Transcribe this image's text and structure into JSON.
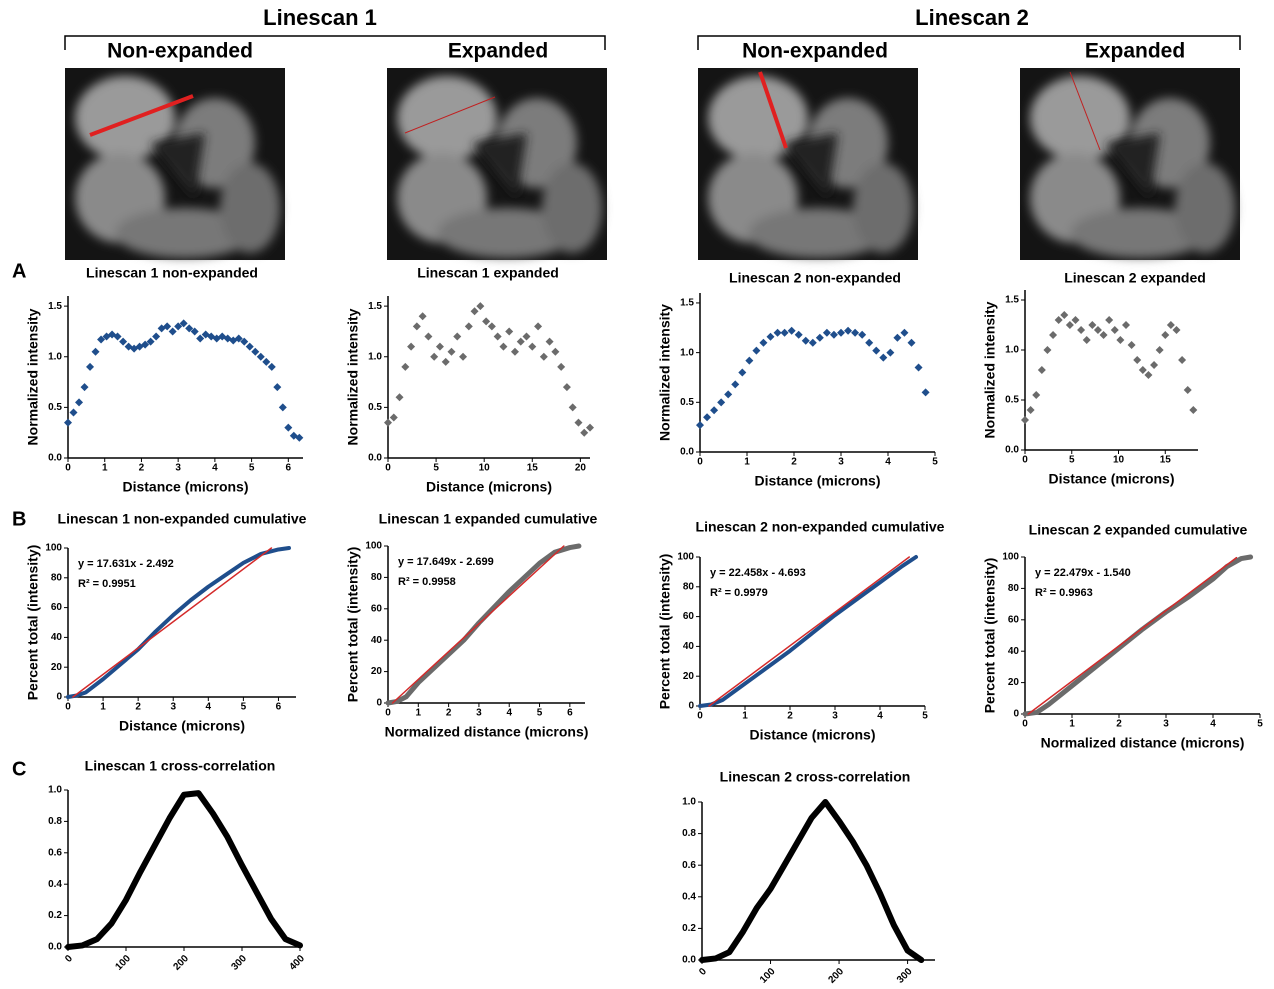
{
  "header": {
    "groups": [
      {
        "title": "Linescan 1",
        "columns": [
          "Non-expanded",
          "Expanded"
        ]
      },
      {
        "title": "Linescan 2",
        "columns": [
          "Non-expanded",
          "Expanded"
        ]
      }
    ]
  },
  "panel_labels": [
    "A",
    "B",
    "C"
  ],
  "chart_data": [
    {
      "type": "scatter",
      "title": "Linescan 1 non-expanded",
      "x_label": "Distance (microns)",
      "y_label": "Normalized intensity",
      "xlim": [
        0,
        6.4
      ],
      "ylim": [
        0,
        1.6
      ],
      "xticks": [
        0,
        1,
        2,
        3,
        4,
        5,
        6
      ],
      "yticks": [
        {
          "value": 0,
          "label": "0.0"
        },
        0.5,
        {
          "value": 1,
          "label": "1.0"
        },
        1.5
      ],
      "series": [
        {
          "color": "#1f4e8c",
          "x": [
            0,
            0.15,
            0.3,
            0.45,
            0.6,
            0.75,
            0.9,
            1.05,
            1.2,
            1.35,
            1.5,
            1.65,
            1.8,
            1.95,
            2.1,
            2.25,
            2.4,
            2.55,
            2.7,
            2.85,
            3,
            3.15,
            3.3,
            3.45,
            3.6,
            3.75,
            3.9,
            4.05,
            4.2,
            4.35,
            4.5,
            4.65,
            4.8,
            4.95,
            5.1,
            5.25,
            5.4,
            5.55,
            5.7,
            5.85,
            6,
            6.15,
            6.3
          ],
          "values": [
            0.35,
            0.45,
            0.55,
            0.7,
            0.9,
            1.05,
            1.17,
            1.2,
            1.22,
            1.2,
            1.15,
            1.1,
            1.08,
            1.1,
            1.12,
            1.15,
            1.2,
            1.28,
            1.3,
            1.25,
            1.3,
            1.33,
            1.28,
            1.25,
            1.18,
            1.22,
            1.2,
            1.18,
            1.2,
            1.18,
            1.16,
            1.18,
            1.15,
            1.1,
            1.05,
            1.0,
            0.95,
            0.9,
            0.7,
            0.5,
            0.3,
            0.22,
            0.2
          ]
        }
      ]
    },
    {
      "type": "scatter",
      "title": "Linescan 1 expanded",
      "x_label": "Distance (microns)",
      "y_label": "Normalized intensity",
      "xlim": [
        0,
        21
      ],
      "ylim": [
        0,
        1.6
      ],
      "xticks": [
        0,
        5,
        10,
        15,
        20
      ],
      "yticks": [
        {
          "value": 0,
          "label": "0.0"
        },
        0.5,
        {
          "value": 1,
          "label": "1.0"
        },
        1.5
      ],
      "series": [
        {
          "color": "#6b6b6b",
          "x": [
            0,
            0.6,
            1.2,
            1.8,
            2.4,
            3,
            3.6,
            4.2,
            4.8,
            5.4,
            6,
            6.6,
            7.2,
            7.8,
            8.4,
            9,
            9.6,
            10.2,
            10.8,
            11.4,
            12,
            12.6,
            13.2,
            13.8,
            14.4,
            15,
            15.6,
            16.2,
            16.8,
            17.4,
            18,
            18.6,
            19.2,
            19.8,
            20.4,
            21
          ],
          "values": [
            0.35,
            0.4,
            0.6,
            0.9,
            1.1,
            1.3,
            1.4,
            1.2,
            1.0,
            1.1,
            0.95,
            1.05,
            1.2,
            1.0,
            1.3,
            1.45,
            1.5,
            1.35,
            1.3,
            1.2,
            1.1,
            1.25,
            1.05,
            1.15,
            1.2,
            1.1,
            1.3,
            1.0,
            1.15,
            1.05,
            0.9,
            0.7,
            0.5,
            0.35,
            0.25,
            0.3
          ]
        }
      ]
    },
    {
      "type": "scatter",
      "title": "Linescan 2 non-expanded",
      "x_label": "Distance (microns)",
      "y_label": "Normalized intensity",
      "xlim": [
        0,
        5
      ],
      "ylim": [
        0,
        1.6
      ],
      "xticks": [
        0,
        1,
        2,
        3,
        4,
        5
      ],
      "yticks": [
        {
          "value": 0,
          "label": "0.0"
        },
        0.5,
        {
          "value": 1,
          "label": "1.0"
        },
        1.5
      ],
      "series": [
        {
          "color": "#1f4e8c",
          "x": [
            0,
            0.15,
            0.3,
            0.45,
            0.6,
            0.75,
            0.9,
            1.05,
            1.2,
            1.35,
            1.5,
            1.65,
            1.8,
            1.95,
            2.1,
            2.25,
            2.4,
            2.55,
            2.7,
            2.85,
            3,
            3.15,
            3.3,
            3.45,
            3.6,
            3.75,
            3.9,
            4.05,
            4.2,
            4.35,
            4.5,
            4.65,
            4.8
          ],
          "values": [
            0.27,
            0.35,
            0.42,
            0.5,
            0.58,
            0.68,
            0.8,
            0.92,
            1.02,
            1.1,
            1.16,
            1.2,
            1.2,
            1.22,
            1.18,
            1.12,
            1.1,
            1.15,
            1.2,
            1.18,
            1.2,
            1.22,
            1.2,
            1.18,
            1.1,
            1.02,
            0.95,
            1.0,
            1.15,
            1.2,
            1.1,
            0.85,
            0.6
          ]
        }
      ]
    },
    {
      "type": "scatter",
      "title": "Linescan 2 expanded",
      "x_label": "Distance (microns)",
      "y_label": "Normalized intensity",
      "xlim": [
        0,
        18.5
      ],
      "ylim": [
        0,
        1.6
      ],
      "xticks": [
        0,
        5,
        10,
        15
      ],
      "yticks": [
        {
          "value": 0,
          "label": "0.0"
        },
        0.5,
        {
          "value": 1,
          "label": "1.0"
        },
        1.5
      ],
      "series": [
        {
          "color": "#6b6b6b",
          "x": [
            0,
            0.6,
            1.2,
            1.8,
            2.4,
            3,
            3.6,
            4.2,
            4.8,
            5.4,
            6,
            6.6,
            7.2,
            7.8,
            8.4,
            9,
            9.6,
            10.2,
            10.8,
            11.4,
            12,
            12.6,
            13.2,
            13.8,
            14.4,
            15,
            15.6,
            16.2,
            16.8,
            17.4,
            18
          ],
          "values": [
            0.3,
            0.4,
            0.55,
            0.8,
            1.0,
            1.15,
            1.3,
            1.35,
            1.25,
            1.3,
            1.2,
            1.1,
            1.25,
            1.2,
            1.15,
            1.3,
            1.2,
            1.1,
            1.25,
            1.05,
            0.9,
            0.8,
            0.75,
            0.85,
            1.0,
            1.15,
            1.25,
            1.2,
            0.9,
            0.6,
            0.4
          ]
        }
      ]
    },
    {
      "type": "line",
      "title": "Linescan 1 non-expanded cumulative",
      "x_label": "Distance (microns)",
      "y_label": "Percent total (intensity)",
      "xlim": [
        0,
        6.5
      ],
      "ylim": [
        0,
        100
      ],
      "xticks": [
        0,
        1,
        2,
        3,
        4,
        5,
        6
      ],
      "yticks": [
        0,
        20,
        40,
        60,
        80,
        100
      ],
      "annotations": [
        "y = 17.631x - 2.492",
        "R² = 0.9951"
      ],
      "series": [
        {
          "color": "#1f4e8c",
          "width": 4,
          "x": [
            0,
            0.25,
            0.5,
            1,
            1.5,
            2,
            2.5,
            3,
            3.5,
            4,
            4.5,
            5,
            5.5,
            6,
            6.3
          ],
          "values": [
            0,
            1,
            3,
            12,
            22,
            32,
            44,
            55,
            65,
            74,
            82,
            90,
            96,
            99,
            100
          ]
        },
        {
          "color": "#d42a2a",
          "width": 1.5,
          "x": [
            0.14,
            5.8
          ],
          "values": [
            0,
            100
          ]
        }
      ]
    },
    {
      "type": "line",
      "title": "Linescan 1 expanded cumulative",
      "x_label": "Normalized distance (microns)",
      "y_label": "Percent total (intensity)",
      "xlim": [
        0,
        6.5
      ],
      "ylim": [
        0,
        100
      ],
      "xticks": [
        0,
        1,
        2,
        3,
        4,
        5,
        6
      ],
      "yticks": [
        0,
        20,
        40,
        60,
        80,
        100
      ],
      "annotations": [
        "y = 17.649x - 2.699",
        "R² = 0.9958"
      ],
      "series": [
        {
          "color": "#6b6b6b",
          "width": 5,
          "x": [
            0,
            0.3,
            0.6,
            1,
            1.5,
            2,
            2.5,
            3,
            3.5,
            4,
            4.5,
            5,
            5.5,
            6,
            6.3
          ],
          "values": [
            0,
            1,
            4,
            13,
            22,
            31,
            40,
            51,
            61,
            71,
            80,
            89,
            96,
            99,
            100
          ]
        },
        {
          "color": "#d42a2a",
          "width": 1.5,
          "x": [
            0.15,
            5.8
          ],
          "values": [
            0,
            100
          ]
        }
      ]
    },
    {
      "type": "line",
      "title": "Linescan 2 non-expanded cumulative",
      "x_label": "Distance (microns)",
      "y_label": "Percent total (intensity)",
      "xlim": [
        0,
        5
      ],
      "ylim": [
        0,
        100
      ],
      "xticks": [
        0,
        1,
        2,
        3,
        4,
        5
      ],
      "yticks": [
        0,
        20,
        40,
        60,
        80,
        100
      ],
      "annotations": [
        "y = 22.458x - 4.693",
        "R² = 0.9979"
      ],
      "series": [
        {
          "color": "#1f4e8c",
          "width": 4,
          "x": [
            0,
            0.25,
            0.5,
            1,
            1.5,
            2,
            2.5,
            3,
            3.5,
            4,
            4.5,
            4.8
          ],
          "values": [
            0,
            1,
            4,
            15,
            26,
            37,
            49,
            61,
            72,
            83,
            94,
            100
          ]
        },
        {
          "color": "#d42a2a",
          "width": 1.5,
          "x": [
            0.2,
            4.65
          ],
          "values": [
            0,
            100
          ]
        }
      ]
    },
    {
      "type": "line",
      "title": "Linescan 2 expanded cumulative",
      "x_label": "Normalized distance (microns)",
      "y_label": "Percent total (intensity)",
      "xlim": [
        0,
        5
      ],
      "ylim": [
        0,
        100
      ],
      "xticks": [
        0,
        1,
        2,
        3,
        4,
        5
      ],
      "yticks": [
        0,
        20,
        40,
        60,
        80,
        100
      ],
      "annotations": [
        "y = 22.479x - 1.540",
        "R² = 0.9963"
      ],
      "series": [
        {
          "color": "#6b6b6b",
          "width": 5,
          "x": [
            0,
            0.25,
            0.5,
            1,
            1.5,
            2,
            2.5,
            3,
            3.5,
            4,
            4.3,
            4.6,
            4.8
          ],
          "values": [
            0,
            1,
            6,
            18,
            30,
            42,
            54,
            65,
            75,
            86,
            94,
            99,
            100
          ]
        },
        {
          "color": "#d42a2a",
          "width": 1.5,
          "x": [
            0.07,
            4.5
          ],
          "values": [
            0,
            99.6
          ]
        }
      ]
    },
    {
      "type": "line",
      "title": "Linescan 1 cross-correlation",
      "xlim": [
        0,
        400
      ],
      "ylim": [
        0,
        1
      ],
      "xticks": [
        0,
        100,
        200,
        300,
        400
      ],
      "yticks": [
        {
          "value": 0,
          "label": "0.0"
        },
        0.2,
        0.4,
        0.6,
        0.8,
        {
          "value": 1,
          "label": "1.0"
        }
      ],
      "series": [
        {
          "color": "#000000",
          "width": 6,
          "x": [
            0,
            25,
            50,
            75,
            100,
            125,
            150,
            175,
            200,
            225,
            250,
            275,
            300,
            325,
            350,
            375,
            400
          ],
          "values": [
            0,
            0.01,
            0.05,
            0.15,
            0.3,
            0.48,
            0.65,
            0.82,
            0.97,
            0.98,
            0.85,
            0.7,
            0.52,
            0.35,
            0.18,
            0.05,
            0.01
          ]
        }
      ]
    },
    {
      "type": "line",
      "title": "Linescan 2 cross-correlation",
      "xlim": [
        0,
        340
      ],
      "ylim": [
        0,
        1
      ],
      "xticks": [
        0,
        100,
        200,
        300
      ],
      "yticks": [
        {
          "value": 0,
          "label": "0.0"
        },
        0.2,
        0.4,
        0.6,
        0.8,
        {
          "value": 1,
          "label": "1.0"
        }
      ],
      "series": [
        {
          "color": "#000000",
          "width": 6,
          "x": [
            0,
            20,
            40,
            60,
            80,
            100,
            120,
            140,
            160,
            180,
            200,
            220,
            240,
            260,
            280,
            300,
            320
          ],
          "values": [
            0,
            0.01,
            0.05,
            0.18,
            0.33,
            0.45,
            0.6,
            0.75,
            0.9,
            1.0,
            0.88,
            0.75,
            0.6,
            0.42,
            0.22,
            0.06,
            0
          ]
        }
      ]
    }
  ]
}
